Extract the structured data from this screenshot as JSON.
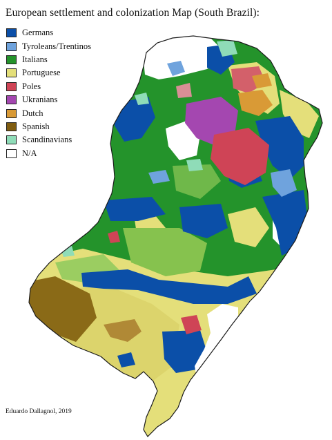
{
  "title": "European settlement and colonization Map (South Brazil):",
  "legend": [
    {
      "label": "Germans",
      "color": "#0b4fa8"
    },
    {
      "label": "Tyroleans/Trentinos",
      "color": "#6fa3dd"
    },
    {
      "label": "Italians",
      "color": "#24932b"
    },
    {
      "label": "Portuguese",
      "color": "#e4df7a"
    },
    {
      "label": "Poles",
      "color": "#cf4456"
    },
    {
      "label": "Ukranians",
      "color": "#a447b0"
    },
    {
      "label": "Dutch",
      "color": "#d99a36"
    },
    {
      "label": "Spanish",
      "color": "#7f5c10"
    },
    {
      "label": "Scandinavians",
      "color": "#8fdcb8"
    },
    {
      "label": "N/A",
      "color": "#ffffff"
    }
  ],
  "credit": "Eduardo Dallagnol, 2019"
}
